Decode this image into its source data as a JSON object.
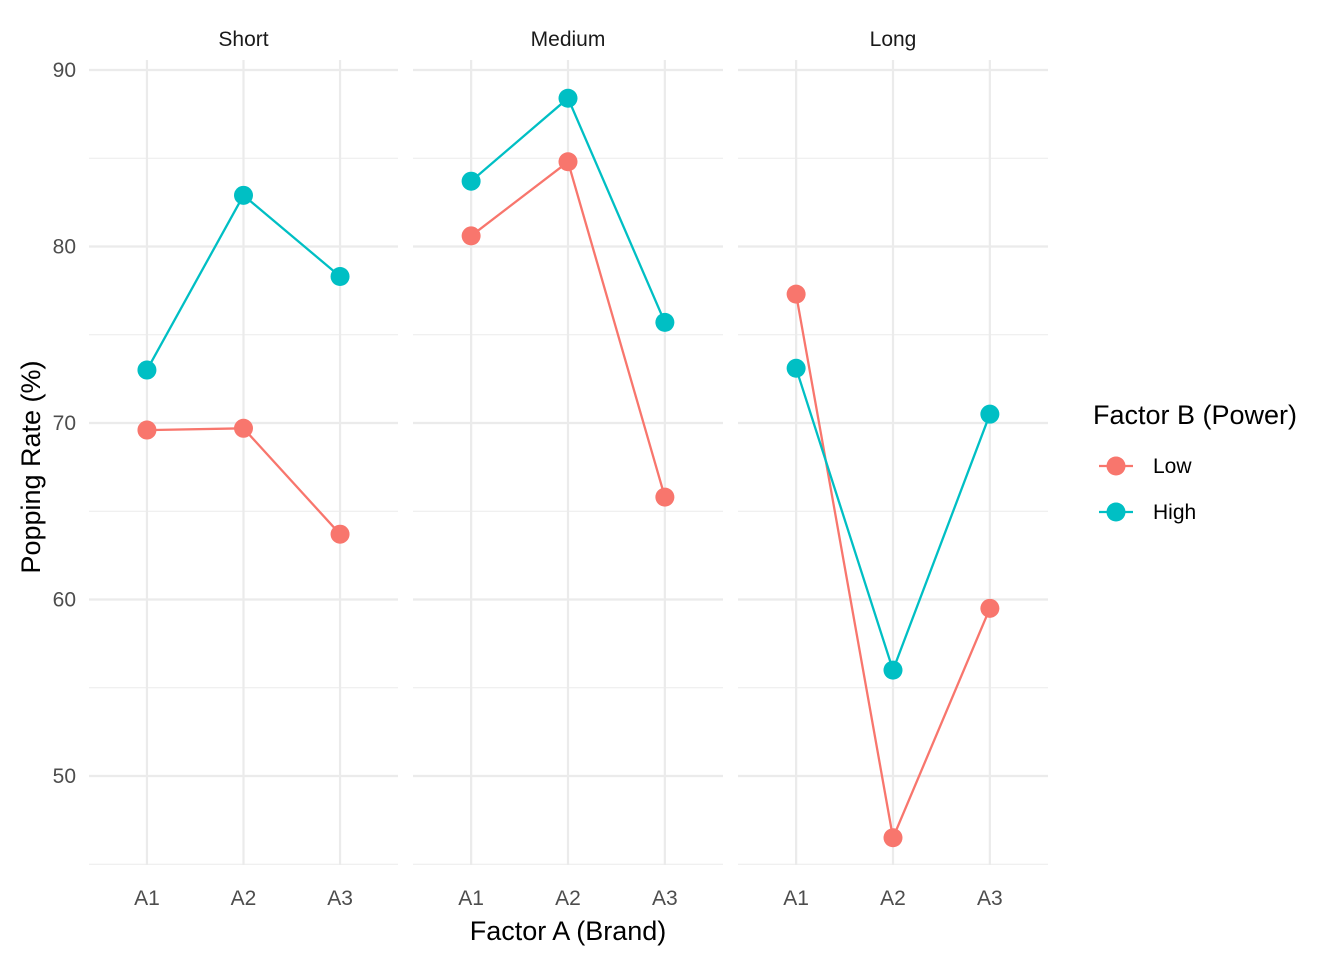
{
  "chart_data": {
    "type": "line",
    "facets": [
      "Short",
      "Medium",
      "Long"
    ],
    "categories": [
      "A1",
      "A2",
      "A3"
    ],
    "xlabel": "Factor A (Brand)",
    "ylabel": "Popping Rate (%)",
    "ylim": [
      45,
      92
    ],
    "yticks": [
      50,
      60,
      70,
      80,
      90
    ],
    "grid": true,
    "legend": {
      "title": "Factor B (Power)",
      "position": "right",
      "entries": [
        "Low",
        "High"
      ]
    },
    "series": [
      {
        "name": "Low",
        "color": "#F8766D",
        "values": {
          "Short": [
            69.6,
            69.7,
            63.7
          ],
          "Medium": [
            80.6,
            84.8,
            65.8
          ],
          "Long": [
            77.3,
            46.5,
            59.5
          ]
        }
      },
      {
        "name": "High",
        "color": "#00BFC4",
        "values": {
          "Short": [
            73.0,
            82.9,
            78.3
          ],
          "Medium": [
            83.7,
            88.4,
            75.7
          ],
          "Long": [
            73.1,
            56.0,
            70.5
          ]
        }
      }
    ]
  }
}
